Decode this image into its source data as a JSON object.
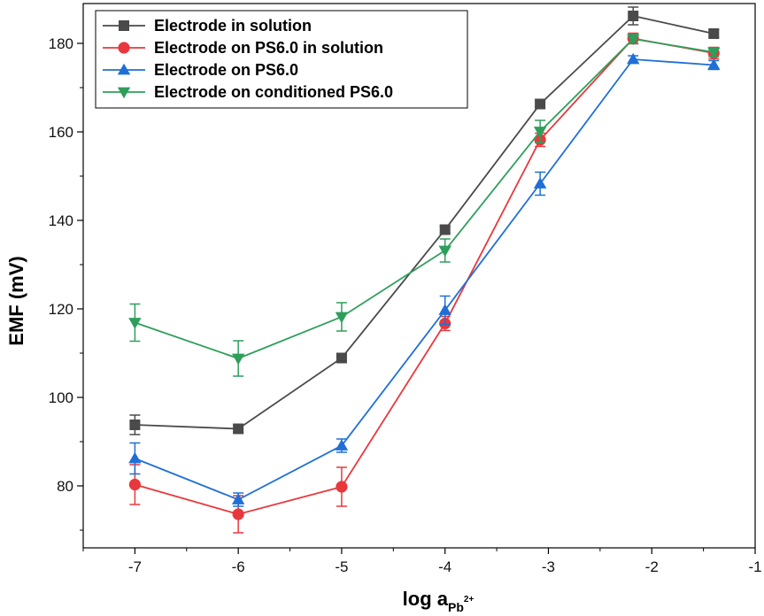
{
  "chart_data": {
    "type": "line",
    "xlabel": {
      "main": "log a",
      "sub": "Pb",
      "sup": "2+"
    },
    "ylabel": "EMF (mV)",
    "xlim": [
      -7.5,
      -1
    ],
    "ylim": [
      66,
      189
    ],
    "xticks": [
      -7,
      -6,
      -5,
      -4,
      -3,
      -2,
      -1
    ],
    "yticks": [
      80,
      100,
      120,
      140,
      160,
      180
    ],
    "legend_position": "top-left",
    "series": [
      {
        "name": "Electrode in solution",
        "color": "#4a4a4a",
        "marker": "square",
        "x": [
          -7,
          -6,
          -5,
          -4,
          -3.08,
          -2.18,
          -1.4
        ],
        "y": [
          93.8,
          92.9,
          108.9,
          137.9,
          166.3,
          186.2,
          182.2
        ],
        "err": [
          2.2,
          0.8,
          0.7,
          0.8,
          0.7,
          2.0,
          0.8
        ]
      },
      {
        "name": "Electrode on PS6.0 in solution",
        "color": "#e8383d",
        "marker": "circle",
        "x": [
          -7,
          -6,
          -5,
          -4,
          -3.08,
          -2.18,
          -1.4
        ],
        "y": [
          80.3,
          73.6,
          79.8,
          116.7,
          158.2,
          181.1,
          177.8
        ],
        "err": [
          4.5,
          4.2,
          4.4,
          1.6,
          1.5,
          1.2,
          1.3
        ]
      },
      {
        "name": "Electrode on PS6.0",
        "color": "#1f6fd6",
        "marker": "triangle-up",
        "x": [
          -7,
          -6,
          -5,
          -4,
          -3.08,
          -2.18,
          -1.4
        ],
        "y": [
          86.2,
          76.9,
          89.1,
          119.7,
          148.3,
          176.4,
          175.1
        ],
        "err": [
          3.5,
          1.5,
          1.5,
          3.2,
          2.6,
          0.8,
          1.0
        ]
      },
      {
        "name": "Electrode on conditioned PS6.0",
        "color": "#2e9e5b",
        "marker": "triangle-down",
        "x": [
          -7,
          -6,
          -5,
          -4,
          -3.08,
          -2.18,
          -1.4
        ],
        "y": [
          116.9,
          108.8,
          118.2,
          133.2,
          160.1,
          181.0,
          178.0
        ],
        "err": [
          4.2,
          4.0,
          3.2,
          2.6,
          2.5,
          1.0,
          1.0
        ]
      }
    ]
  }
}
